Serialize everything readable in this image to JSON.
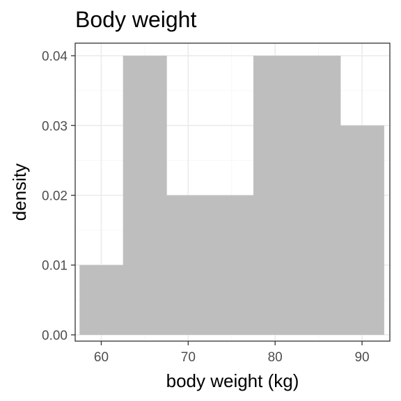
{
  "chart_data": {
    "type": "histogram",
    "title": "Body weight",
    "xlabel": "body weight (kg)",
    "ylabel": "density",
    "xlim": [
      57,
      93.2
    ],
    "ylim": [
      -0.0009,
      0.0418
    ],
    "x_ticks": [
      60,
      70,
      80,
      90
    ],
    "x_tick_labels": [
      "60",
      "70",
      "80",
      "90"
    ],
    "y_ticks": [
      0,
      0.01,
      0.02,
      0.03,
      0.04
    ],
    "y_tick_labels": [
      "0.00",
      "0.01",
      "0.02",
      "0.03",
      "0.04"
    ],
    "bin_width": 5,
    "bins": [
      {
        "x_start": 57.5,
        "x_end": 62.5,
        "density": 0.01
      },
      {
        "x_start": 62.5,
        "x_end": 67.5,
        "density": 0.04
      },
      {
        "x_start": 67.5,
        "x_end": 72.5,
        "density": 0.02
      },
      {
        "x_start": 72.5,
        "x_end": 77.5,
        "density": 0.02
      },
      {
        "x_start": 77.5,
        "x_end": 82.5,
        "density": 0.04
      },
      {
        "x_start": 82.5,
        "x_end": 87.5,
        "density": 0.04
      },
      {
        "x_start": 87.5,
        "x_end": 92.5,
        "density": 0.03
      }
    ],
    "bar_color": "#bebebe",
    "grid": true,
    "theme": "bw"
  }
}
